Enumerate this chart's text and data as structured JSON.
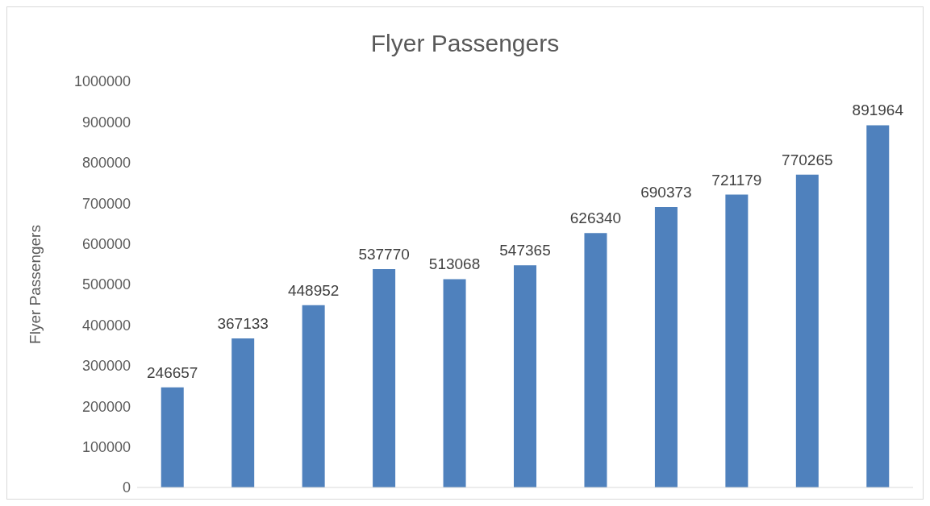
{
  "chart_data": {
    "type": "bar",
    "title": "Flyer Passengers",
    "ylabel": "Flyer Passengers",
    "categories": [
      null,
      null,
      null,
      null,
      null,
      null,
      null,
      null,
      null,
      null,
      null
    ],
    "values": [
      246657,
      367133,
      448952,
      537770,
      513068,
      547365,
      626340,
      690373,
      721179,
      770265,
      891964
    ],
    "color": "#4f81bd",
    "ylim": [
      0,
      1000000
    ],
    "yticks": [
      0,
      100000,
      200000,
      300000,
      400000,
      500000,
      600000,
      700000,
      800000,
      900000,
      1000000
    ],
    "data_labels": true,
    "grid": false,
    "legend": false
  }
}
